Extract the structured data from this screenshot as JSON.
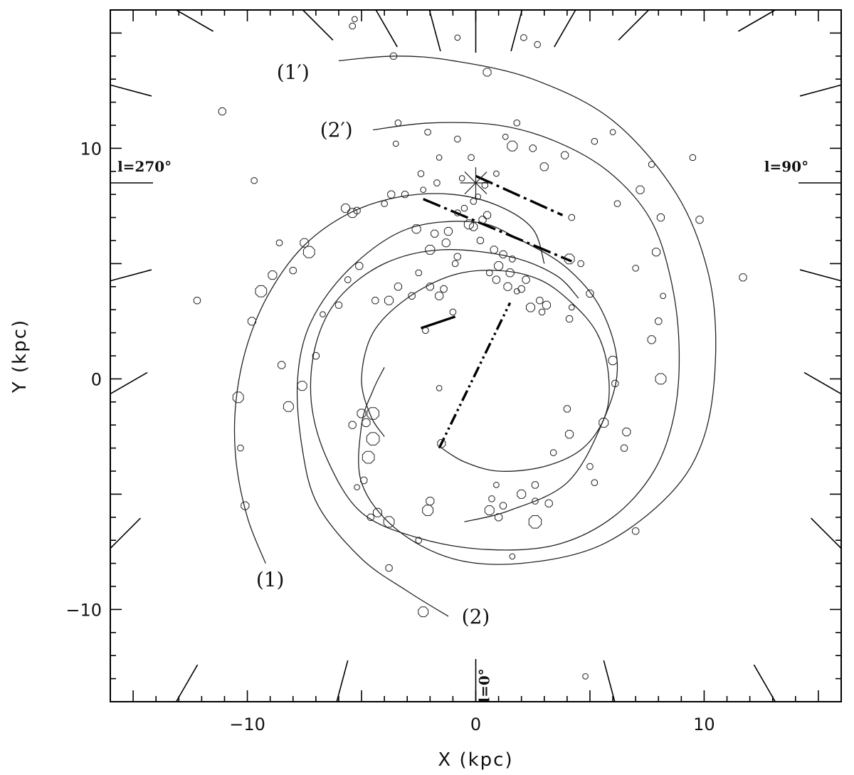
{
  "chart_data": {
    "type": "scatter",
    "title": "",
    "xlabel": "X (kpc)",
    "ylabel": "Y (kpc)",
    "xlim": [
      -16,
      16
    ],
    "ylim": [
      -14,
      16
    ],
    "xticks": [
      -10,
      0,
      10
    ],
    "yticks": [
      -10,
      0,
      10
    ],
    "xtick_labels": [
      "−10",
      "0",
      "10"
    ],
    "ytick_labels": [
      "−10",
      "0",
      "10"
    ],
    "grid": false,
    "sun_position": [
      0,
      8.5
    ],
    "longitude_labels": [
      {
        "text": "l=270°",
        "x": -14.5,
        "y": 9.0
      },
      {
        "text": "l=90°",
        "x": 13.6,
        "y": 9.0
      },
      {
        "text": "l=0°",
        "x": 0.6,
        "y": -13.3
      }
    ],
    "spiral_arm_labels": [
      {
        "text": "(1′)",
        "x": -8.0,
        "y": 13.0
      },
      {
        "text": "(2′)",
        "x": -6.1,
        "y": 10.5
      },
      {
        "text": "(1)",
        "x": -9.0,
        "y": -9.0
      },
      {
        "text": "(2)",
        "x": 0.0,
        "y": -10.6
      }
    ],
    "spiral_arms": [
      {
        "id": "1",
        "points": [
          [
            -9.2,
            -8.0
          ],
          [
            -10.0,
            -6.0
          ],
          [
            -10.5,
            -3.5
          ],
          [
            -10.5,
            -1.0
          ],
          [
            -10.0,
            1.5
          ],
          [
            -9.0,
            3.8
          ],
          [
            -7.5,
            5.8
          ],
          [
            -5.5,
            7.2
          ],
          [
            -3.3,
            7.9
          ],
          [
            -1.0,
            8.0
          ],
          [
            1.0,
            7.5
          ],
          [
            2.5,
            6.5
          ],
          [
            3.0,
            5.0
          ]
        ]
      },
      {
        "id": "2",
        "points": [
          [
            -1.2,
            -10.3
          ],
          [
            -3.0,
            -9.2
          ],
          [
            -5.0,
            -7.8
          ],
          [
            -6.9,
            -5.5
          ],
          [
            -7.6,
            -3.0
          ],
          [
            -7.8,
            0.0
          ],
          [
            -7.2,
            2.5
          ],
          [
            -5.5,
            4.8
          ],
          [
            -3.0,
            6.5
          ],
          [
            0.0,
            6.8
          ],
          [
            2.0,
            6.0
          ],
          [
            4.0,
            4.8
          ],
          [
            5.5,
            3.0
          ],
          [
            6.2,
            0.5
          ],
          [
            5.5,
            -2.0
          ],
          [
            4.0,
            -4.5
          ],
          [
            1.5,
            -5.7
          ],
          [
            -0.5,
            -6.2
          ]
        ]
      },
      {
        "id": "1p",
        "points": [
          [
            -6.0,
            13.8
          ],
          [
            -3.5,
            14.0
          ],
          [
            -1.0,
            13.8
          ],
          [
            2.5,
            13.0
          ],
          [
            6.0,
            11.2
          ],
          [
            8.8,
            8.0
          ],
          [
            10.2,
            4.5
          ],
          [
            10.5,
            1.0
          ],
          [
            10.0,
            -2.5
          ],
          [
            8.5,
            -5.0
          ],
          [
            5.5,
            -7.2
          ],
          [
            2.0,
            -8.0
          ],
          [
            -1.0,
            -7.8
          ],
          [
            -3.5,
            -6.5
          ],
          [
            -5.0,
            -4.5
          ],
          [
            -5.0,
            -2.0
          ],
          [
            -4.5,
            -0.5
          ],
          [
            -4.0,
            0.5
          ]
        ]
      },
      {
        "id": "2p",
        "points": [
          [
            -4.5,
            10.8
          ],
          [
            -2.0,
            11.1
          ],
          [
            1.0,
            11.0
          ],
          [
            3.5,
            10.3
          ],
          [
            5.8,
            9.0
          ],
          [
            7.6,
            7.0
          ],
          [
            8.5,
            4.5
          ],
          [
            8.9,
            1.5
          ],
          [
            8.7,
            -1.5
          ],
          [
            7.8,
            -4.0
          ],
          [
            6.0,
            -6.0
          ],
          [
            3.5,
            -7.2
          ],
          [
            0.5,
            -7.4
          ],
          [
            -2.5,
            -6.9
          ],
          [
            -5.0,
            -5.8
          ],
          [
            -6.5,
            -3.5
          ],
          [
            -7.2,
            -1.0
          ],
          [
            -7.0,
            1.5
          ],
          [
            -6.0,
            3.5
          ],
          [
            -4.0,
            5.0
          ],
          [
            -1.5,
            5.6
          ],
          [
            1.5,
            5.3
          ],
          [
            3.5,
            4.5
          ],
          [
            4.5,
            3.5
          ]
        ]
      },
      {
        "id": "inner",
        "points": [
          [
            -1.5,
            -3.0
          ],
          [
            -0.5,
            -3.6
          ],
          [
            1.0,
            -4.0
          ],
          [
            3.0,
            -3.8
          ],
          [
            4.7,
            -3.0
          ],
          [
            5.7,
            -1.5
          ],
          [
            5.8,
            0.3
          ],
          [
            5.3,
            2.0
          ],
          [
            4.2,
            3.3
          ],
          [
            2.8,
            4.3
          ],
          [
            1.0,
            4.7
          ],
          [
            -1.0,
            4.5
          ],
          [
            -3.0,
            3.5
          ],
          [
            -4.5,
            2.0
          ],
          [
            -5.0,
            0.0
          ],
          [
            -4.6,
            -1.6
          ],
          [
            -4.0,
            -2.5
          ]
        ]
      }
    ],
    "feature_lines": [
      {
        "style": "dash-dot",
        "points": [
          [
            0.0,
            8.8
          ],
          [
            3.8,
            7.1
          ]
        ]
      },
      {
        "style": "dash-dot",
        "points": [
          [
            -2.3,
            7.8
          ],
          [
            4.2,
            5.1
          ]
        ]
      },
      {
        "style": "solid",
        "points": [
          [
            -2.4,
            2.2
          ],
          [
            -0.9,
            2.7
          ]
        ]
      },
      {
        "style": "dash-dot-dot",
        "points": [
          [
            -1.6,
            -3.0
          ],
          [
            1.5,
            3.3
          ]
        ]
      }
    ],
    "sources": [
      [
        -11.1,
        11.6,
        0.8
      ],
      [
        -9.7,
        8.6,
        0.6
      ],
      [
        -9.4,
        3.8,
        1.4
      ],
      [
        -9.8,
        2.5,
        0.9
      ],
      [
        -12.2,
        3.4,
        0.7
      ],
      [
        -10.4,
        -0.8,
        1.3
      ],
      [
        -10.1,
        -5.5,
        0.9
      ],
      [
        -10.3,
        -3.0,
        0.6
      ],
      [
        -8.2,
        -1.2,
        1.2
      ],
      [
        -8.5,
        0.6,
        0.8
      ],
      [
        -7.6,
        -0.3,
        1.1
      ],
      [
        -7.0,
        1.0,
        0.7
      ],
      [
        -7.3,
        5.5,
        1.4
      ],
      [
        -7.5,
        5.9,
        1.0
      ],
      [
        -8.9,
        4.5,
        1.0
      ],
      [
        -8.6,
        5.9,
        0.6
      ],
      [
        -8.0,
        4.7,
        0.7
      ],
      [
        -6.7,
        2.8,
        0.5
      ],
      [
        -6.0,
        3.2,
        0.7
      ],
      [
        -5.6,
        4.3,
        0.6
      ],
      [
        -5.1,
        4.9,
        0.8
      ],
      [
        -5.4,
        -2.0,
        0.8
      ],
      [
        -5.0,
        -1.5,
        1.0
      ],
      [
        -4.8,
        -1.9,
        0.9
      ],
      [
        -4.5,
        -1.5,
        1.5
      ],
      [
        -4.5,
        -2.6,
        1.6
      ],
      [
        -4.7,
        -3.4,
        1.5
      ],
      [
        -4.9,
        -4.4,
        0.7
      ],
      [
        -5.2,
        -4.7,
        0.5
      ],
      [
        -4.3,
        -5.8,
        1.0
      ],
      [
        -3.8,
        -6.2,
        1.3
      ],
      [
        -4.6,
        -6.0,
        0.7
      ],
      [
        -3.8,
        -8.2,
        0.7
      ],
      [
        -2.5,
        -7.0,
        0.6
      ],
      [
        -2.3,
        -10.1,
        1.2
      ],
      [
        -2.0,
        -5.3,
        0.9
      ],
      [
        -2.1,
        -5.7,
        1.3
      ],
      [
        -1.5,
        -2.8,
        0.9
      ],
      [
        -4.4,
        3.4,
        0.7
      ],
      [
        -3.8,
        3.4,
        1.0
      ],
      [
        -3.4,
        4.0,
        0.8
      ],
      [
        -2.8,
        3.6,
        0.7
      ],
      [
        -2.5,
        4.6,
        0.6
      ],
      [
        -2.0,
        4.0,
        0.8
      ],
      [
        -1.6,
        3.6,
        0.9
      ],
      [
        -1.4,
        3.9,
        0.7
      ],
      [
        -2.6,
        6.5,
        1.0
      ],
      [
        -2.0,
        5.6,
        1.1
      ],
      [
        -1.3,
        5.9,
        0.9
      ],
      [
        -0.8,
        5.3,
        0.7
      ],
      [
        -0.3,
        6.7,
        1.1
      ],
      [
        0.3,
        6.9,
        0.8
      ],
      [
        0.8,
        5.6,
        0.8
      ],
      [
        1.0,
        4.9,
        1.0
      ],
      [
        1.5,
        4.6,
        0.9
      ],
      [
        2.4,
        3.1,
        1.0
      ],
      [
        2.8,
        3.4,
        0.7
      ],
      [
        3.1,
        3.2,
        0.9
      ],
      [
        2.9,
        2.9,
        0.6
      ],
      [
        4.1,
        5.2,
        1.2
      ],
      [
        4.6,
        5.0,
        0.6
      ],
      [
        5.0,
        3.7,
        0.8
      ],
      [
        6.0,
        0.8,
        1.0
      ],
      [
        8.1,
        0.0,
        1.3
      ],
      [
        6.1,
        -0.2,
        0.7
      ],
      [
        5.6,
        -1.9,
        1.1
      ],
      [
        4.1,
        -2.4,
        0.9
      ],
      [
        4.0,
        -1.3,
        0.7
      ],
      [
        3.4,
        -3.2,
        0.6
      ],
      [
        5.0,
        -3.8,
        0.6
      ],
      [
        6.6,
        -2.3,
        0.9
      ],
      [
        6.5,
        -3.0,
        0.7
      ],
      [
        5.2,
        -4.5,
        0.6
      ],
      [
        2.6,
        -4.6,
        0.7
      ],
      [
        2.0,
        -5.0,
        1.0
      ],
      [
        2.6,
        -5.3,
        0.6
      ],
      [
        3.2,
        -5.4,
        0.8
      ],
      [
        0.9,
        -4.6,
        0.5
      ],
      [
        1.2,
        -5.5,
        0.7
      ],
      [
        0.7,
        -5.2,
        0.6
      ],
      [
        0.6,
        -5.7,
        1.1
      ],
      [
        1.0,
        -6.0,
        0.8
      ],
      [
        2.6,
        -6.2,
        1.6
      ],
      [
        7.0,
        -6.6,
        0.7
      ],
      [
        1.6,
        -7.7,
        0.5
      ],
      [
        4.8,
        -12.9,
        0.5
      ],
      [
        7.7,
        9.3,
        0.6
      ],
      [
        9.5,
        9.6,
        0.6
      ],
      [
        7.9,
        5.5,
        0.9
      ],
      [
        8.2,
        3.6,
        0.5
      ],
      [
        8.1,
        7.0,
        0.8
      ],
      [
        7.0,
        4.8,
        0.6
      ],
      [
        8.0,
        2.5,
        0.7
      ],
      [
        7.7,
        1.7,
        0.9
      ],
      [
        5.2,
        10.3,
        0.6
      ],
      [
        3.9,
        9.7,
        0.8
      ],
      [
        4.2,
        7.0,
        0.6
      ],
      [
        6.0,
        10.7,
        0.5
      ],
      [
        6.2,
        7.6,
        0.6
      ],
      [
        7.2,
        8.2,
        0.9
      ],
      [
        9.8,
        6.9,
        0.8
      ],
      [
        11.7,
        4.4,
        0.8
      ],
      [
        -3.6,
        14.0,
        0.7
      ],
      [
        -5.4,
        15.3,
        0.6
      ],
      [
        -5.3,
        15.6,
        0.5
      ],
      [
        -0.8,
        14.8,
        0.5
      ],
      [
        2.1,
        14.8,
        0.6
      ],
      [
        2.7,
        14.5,
        0.6
      ],
      [
        0.5,
        13.3,
        0.9
      ],
      [
        1.8,
        11.1,
        0.6
      ],
      [
        1.3,
        10.5,
        0.5
      ],
      [
        1.6,
        10.1,
        1.2
      ],
      [
        2.5,
        10.0,
        0.7
      ],
      [
        3.0,
        9.2,
        0.9
      ],
      [
        -3.4,
        11.1,
        0.6
      ],
      [
        -3.5,
        10.2,
        0.5
      ],
      [
        -2.1,
        10.7,
        0.6
      ],
      [
        -0.8,
        10.4,
        0.6
      ],
      [
        -1.6,
        9.6,
        0.5
      ],
      [
        -0.2,
        9.6,
        0.6
      ],
      [
        -2.4,
        8.9,
        0.6
      ],
      [
        -2.3,
        8.2,
        0.5
      ],
      [
        -1.7,
        8.5,
        0.6
      ],
      [
        -3.1,
        8.0,
        0.7
      ],
      [
        -3.7,
        8.0,
        0.8
      ],
      [
        -5.7,
        7.4,
        1.0
      ],
      [
        -5.4,
        7.2,
        1.1
      ],
      [
        -5.2,
        7.3,
        0.7
      ],
      [
        -4.0,
        7.6,
        0.6
      ],
      [
        -0.8,
        7.2,
        0.6
      ],
      [
        -0.5,
        7.4,
        0.6
      ],
      [
        0.5,
        7.1,
        0.8
      ],
      [
        -1.8,
        6.3,
        0.8
      ],
      [
        -1.2,
        6.4,
        0.9
      ],
      [
        -0.1,
        6.6,
        0.9
      ],
      [
        0.2,
        6.0,
        0.7
      ],
      [
        1.2,
        5.4,
        0.8
      ],
      [
        1.6,
        5.2,
        0.6
      ],
      [
        -0.9,
        5.0,
        0.6
      ],
      [
        0.6,
        4.6,
        0.6
      ],
      [
        0.9,
        4.3,
        0.8
      ],
      [
        1.4,
        4.0,
        0.9
      ],
      [
        2.0,
        3.9,
        0.7
      ],
      [
        1.8,
        3.8,
        0.5
      ],
      [
        2.2,
        4.3,
        0.8
      ],
      [
        -0.6,
        8.7,
        0.5
      ],
      [
        0.4,
        8.4,
        0.6
      ],
      [
        0.9,
        8.9,
        0.5
      ],
      [
        -2.2,
        2.1,
        0.6
      ],
      [
        -1.0,
        2.9,
        0.6
      ],
      [
        4.1,
        2.6,
        0.7
      ],
      [
        4.2,
        3.1,
        0.5
      ],
      [
        -1.6,
        -0.4,
        0.5
      ],
      [
        0.1,
        7.9,
        0.5
      ],
      [
        -0.1,
        7.7,
        0.6
      ]
    ]
  }
}
